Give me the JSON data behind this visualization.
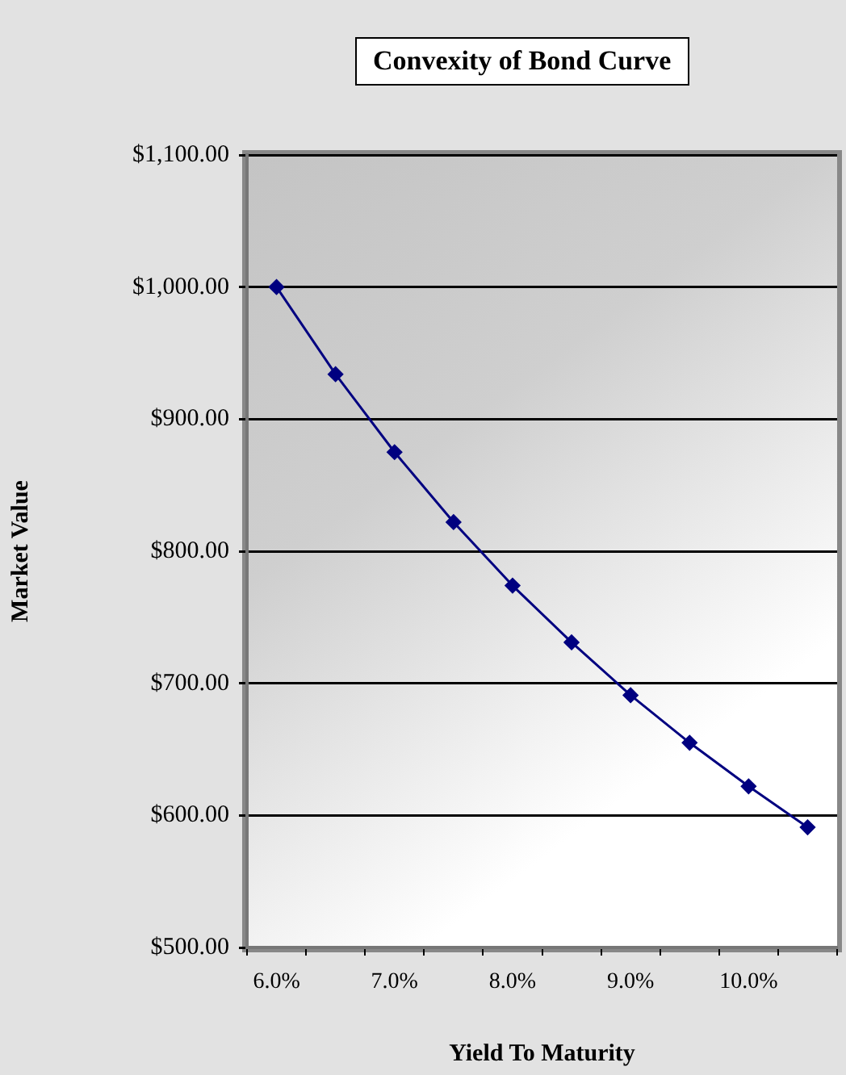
{
  "chart_data": {
    "type": "line",
    "title": "Convexity of Bond Curve",
    "xlabel": "Yield To Maturity",
    "ylabel": "Market Value",
    "categories": [
      "6.0%",
      null,
      "7.0%",
      null,
      "8.0%",
      null,
      "9.0%",
      null,
      "10.0%",
      null
    ],
    "series": [
      {
        "color": "#000080",
        "values": [
          1000,
          934,
          875,
          822,
          774,
          731,
          691,
          655,
          622,
          591
        ]
      }
    ],
    "ylim": [
      500,
      1100
    ],
    "yticks": [
      {
        "value": 500,
        "label": "$500.00"
      },
      {
        "value": 600,
        "label": "$600.00"
      },
      {
        "value": 700,
        "label": "$700.00"
      },
      {
        "value": 800,
        "label": "$800.00"
      },
      {
        "value": 900,
        "label": "$900.00"
      },
      {
        "value": 1000,
        "label": "$1,000.00"
      },
      {
        "value": 1100,
        "label": "$1,100.00"
      }
    ],
    "grid": "y",
    "legend": false,
    "marker": "diamond",
    "line_style": "solid"
  }
}
